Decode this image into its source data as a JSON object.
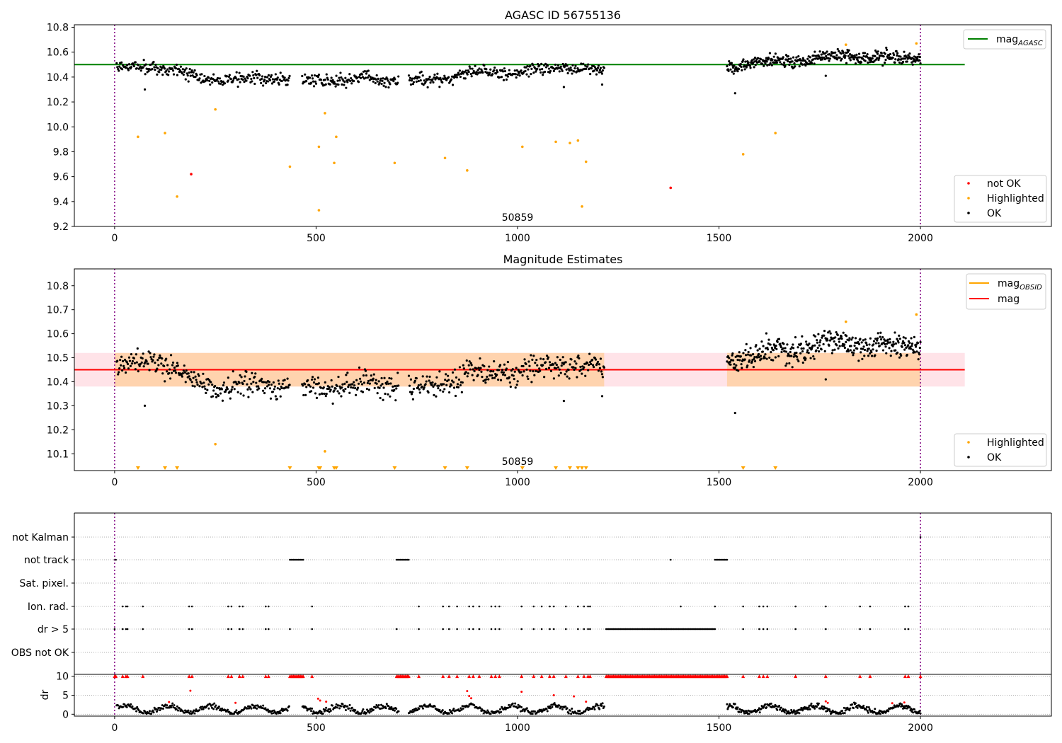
{
  "chart_data": [
    {
      "type": "scatter",
      "title": "AGASC ID 56755136",
      "xlim": [
        -100,
        2325
      ],
      "ylim": [
        9.2,
        10.82
      ],
      "xticks": [
        0,
        500,
        1000,
        1500,
        2000
      ],
      "yticks": [
        9.2,
        9.4,
        9.6,
        9.8,
        10.0,
        10.2,
        10.4,
        10.6,
        10.8
      ],
      "annotation": "50859",
      "legend_upper": {
        "placement": "upper-right",
        "entries": [
          {
            "label_main": "mag",
            "label_sub": "AGASC",
            "color": "#008000",
            "kind": "line"
          }
        ]
      },
      "legend_lower": {
        "placement": "lower-right",
        "entries": [
          {
            "label": "not OK",
            "color": "#ff0000",
            "kind": "point"
          },
          {
            "label": "Highlighted",
            "color": "#ffa500",
            "kind": "point"
          },
          {
            "label": "OK",
            "color": "#000000",
            "kind": "point"
          }
        ]
      },
      "mag_agasc": {
        "value": 10.5,
        "x_range": [
          -100,
          2110
        ],
        "color": "#008000"
      },
      "vlines": {
        "x": [
          0,
          2000
        ],
        "color": "#800080"
      },
      "ok_segments": [
        {
          "x": [
            5,
            1215
          ],
          "mid": [
            [
              5,
              10.46
            ],
            [
              100,
              10.49
            ],
            [
              150,
              10.45
            ],
            [
              250,
              10.37
            ],
            [
              400,
              10.39
            ],
            [
              430,
              10.38
            ],
            [
              470,
              10.37
            ],
            [
              680,
              10.39
            ],
            [
              730,
              10.37
            ],
            [
              800,
              10.38
            ],
            [
              900,
              10.44
            ],
            [
              1000,
              10.44
            ],
            [
              1100,
              10.48
            ],
            [
              1215,
              10.45
            ]
          ],
          "gaps": [
            [
              435,
              465
            ],
            [
              705,
              730
            ]
          ],
          "n": 700
        },
        {
          "x": [
            1520,
            2000
          ],
          "mid": [
            [
              1520,
              10.48
            ],
            [
              1600,
              10.52
            ],
            [
              1700,
              10.53
            ],
            [
              1800,
              10.57
            ],
            [
              1900,
              10.55
            ],
            [
              2000,
              10.56
            ]
          ],
          "n": 380
        }
      ],
      "ok_outliers": [
        [
          75,
          10.3
        ],
        [
          1115,
          10.32
        ],
        [
          1540,
          10.27
        ],
        [
          1765,
          10.41
        ],
        [
          1210,
          10.34
        ]
      ],
      "not_ok_points": [
        [
          190,
          9.62
        ],
        [
          1380,
          9.51
        ]
      ],
      "highlighted_points": [
        [
          58,
          9.92
        ],
        [
          125,
          9.95
        ],
        [
          155,
          9.44
        ],
        [
          250,
          10.14
        ],
        [
          435,
          9.68
        ],
        [
          507,
          9.84
        ],
        [
          507,
          9.33
        ],
        [
          522,
          10.11
        ],
        [
          545,
          9.71
        ],
        [
          550,
          9.92
        ],
        [
          695,
          9.71
        ],
        [
          820,
          9.75
        ],
        [
          875,
          9.65
        ],
        [
          1012,
          9.84
        ],
        [
          1095,
          9.88
        ],
        [
          1130,
          9.87
        ],
        [
          1150,
          9.89
        ],
        [
          1160,
          9.36
        ],
        [
          1170,
          9.72
        ],
        [
          1560,
          9.78
        ],
        [
          1640,
          9.95
        ],
        [
          1815,
          10.66
        ],
        [
          1990,
          10.67
        ]
      ]
    },
    {
      "type": "scatter",
      "title": "Magnitude Estimates",
      "xlim": [
        -100,
        2325
      ],
      "ylim": [
        10.03,
        10.87
      ],
      "xticks": [
        0,
        500,
        1000,
        1500,
        2000
      ],
      "yticks": [
        10.1,
        10.2,
        10.3,
        10.4,
        10.5,
        10.6,
        10.7,
        10.8
      ],
      "annotation": "50859",
      "legend_upper": {
        "placement": "upper-right",
        "entries": [
          {
            "label_main": "mag",
            "label_sub": "OBSID",
            "color": "#ffa500",
            "kind": "line"
          },
          {
            "label": "mag",
            "color": "#ff0000",
            "kind": "line"
          }
        ]
      },
      "legend_lower": {
        "placement": "lower-right",
        "entries": [
          {
            "label": "Highlighted",
            "color": "#ffa500",
            "kind": "point"
          },
          {
            "label": "OK",
            "color": "#000000",
            "kind": "point"
          }
        ]
      },
      "mag_line": {
        "value": 10.45,
        "x_range": [
          -100,
          2110
        ],
        "color": "#ff0000"
      },
      "mag_band": {
        "low": 10.38,
        "high": 10.52,
        "x_range": [
          -100,
          2110
        ],
        "color": "#ffc0cb"
      },
      "obsid_segments": [
        {
          "x": [
            0,
            1215
          ],
          "low": 10.38,
          "high": 10.52,
          "value": 10.45,
          "color": "#ffa500"
        },
        {
          "x": [
            1520,
            2000
          ],
          "low": 10.38,
          "high": 10.52,
          "value": 10.45,
          "color": "#ffa500"
        }
      ],
      "vlines": {
        "x": [
          0,
          2000
        ],
        "color": "#800080"
      },
      "ok_outliers": [
        [
          75,
          10.3
        ],
        [
          1115,
          10.31
        ],
        [
          1540,
          10.27
        ],
        [
          1765,
          10.4
        ],
        [
          1210,
          10.35
        ]
      ],
      "highlighted_points": [
        [
          250,
          10.14
        ],
        [
          522,
          10.11
        ],
        [
          1815,
          10.65
        ],
        [
          1990,
          10.68
        ]
      ],
      "clipped_markers": {
        "y": 10.03,
        "x": [
          58,
          125,
          155,
          435,
          507,
          510,
          545,
          550,
          695,
          820,
          875,
          1012,
          1095,
          1130,
          1150,
          1160,
          1170,
          1560,
          1640
        ],
        "color": "#ffa500"
      }
    },
    {
      "type": "scatter",
      "title": "",
      "xlim": [
        -100,
        2325
      ],
      "xticks": [
        0,
        500,
        1000,
        1500,
        2000
      ],
      "categories": [
        "not Kalman",
        "not track",
        "Sat. pixel.",
        "Ion. rad.",
        "dr > 5",
        "OBS not OK"
      ],
      "vlines": {
        "x": [
          0,
          2000
        ],
        "color": "#800080"
      },
      "flags": {
        "not Kalman": {
          "points": [
            2000
          ],
          "runs": []
        },
        "not track": {
          "points": [
            0,
            3,
            1380
          ],
          "runs": [
            [
              435,
              470
            ],
            [
              700,
              730
            ],
            [
              1490,
              1520
            ]
          ]
        },
        "Sat. pixel.": {
          "points": [],
          "runs": []
        },
        "Ion. rad.": {
          "points": [
            20,
            28,
            32,
            70,
            185,
            192,
            282,
            290,
            310,
            318,
            375,
            382,
            490,
            755,
            815,
            830,
            850,
            880,
            890,
            905,
            935,
            945,
            955,
            1010,
            1040,
            1060,
            1080,
            1090,
            1120,
            1150,
            1165,
            1175,
            1180,
            1405,
            1490,
            1560,
            1600,
            1610,
            1620,
            1690,
            1765,
            1850,
            1875,
            1962,
            1970
          ],
          "runs": []
        },
        "dr > 5": {
          "points": [
            0,
            20,
            28,
            32,
            70,
            185,
            192,
            282,
            290,
            310,
            318,
            375,
            382,
            435,
            490,
            700,
            755,
            815,
            830,
            850,
            880,
            890,
            905,
            935,
            945,
            955,
            1010,
            1040,
            1060,
            1080,
            1090,
            1120,
            1150,
            1165,
            1175,
            1180,
            1560,
            1600,
            1610,
            1620,
            1690,
            1765,
            1850,
            1875,
            1962,
            1970
          ],
          "runs": [
            [
              1220,
              1490
            ]
          ]
        },
        "OBS not OK": {
          "points": [],
          "runs": []
        }
      }
    },
    {
      "type": "scatter",
      "title": "",
      "ylabel": "dr",
      "xlim": [
        -100,
        2325
      ],
      "ylim": [
        -0.5,
        10.5
      ],
      "xticks": [
        0,
        500,
        1000,
        1500,
        2000
      ],
      "yticks": [
        0,
        5,
        10
      ],
      "vlines": {
        "x": [
          0,
          2000
        ],
        "color": "#800080"
      },
      "top_markers": {
        "y": 10,
        "color": "#ff0000",
        "points": [
          0,
          3,
          20,
          28,
          32,
          70,
          185,
          192,
          282,
          290,
          310,
          318,
          375,
          382,
          490,
          755,
          815,
          830,
          850,
          880,
          890,
          905,
          935,
          945,
          955,
          1010,
          1040,
          1060,
          1080,
          1090,
          1120,
          1150,
          1165,
          1175,
          1180,
          1560,
          1600,
          1610,
          1620,
          1690,
          1765,
          1850,
          1875,
          1962,
          1970,
          2000
        ],
        "runs": [
          [
            435,
            470
          ],
          [
            700,
            730
          ],
          [
            1220,
            1520
          ]
        ]
      },
      "ok_segments": [
        {
          "x": [
            5,
            1215
          ],
          "gaps": [
            [
              435,
              465
            ],
            [
              705,
              730
            ]
          ],
          "n": 620
        },
        {
          "x": [
            1520,
            2000
          ],
          "n": 290
        }
      ],
      "red_points": [
        [
          188,
          6.2
        ],
        [
          505,
          4.1
        ],
        [
          510,
          3.6
        ],
        [
          525,
          3.3
        ],
        [
          875,
          6.1
        ],
        [
          880,
          4.8
        ],
        [
          885,
          4.2
        ],
        [
          1010,
          5.9
        ],
        [
          1090,
          5.0
        ],
        [
          1140,
          4.7
        ],
        [
          1170,
          3.3
        ],
        [
          1765,
          3.4
        ],
        [
          1770,
          3.0
        ],
        [
          1930,
          2.9
        ],
        [
          1960,
          3.1
        ],
        [
          135,
          3.2
        ],
        [
          300,
          3.0
        ]
      ]
    }
  ]
}
